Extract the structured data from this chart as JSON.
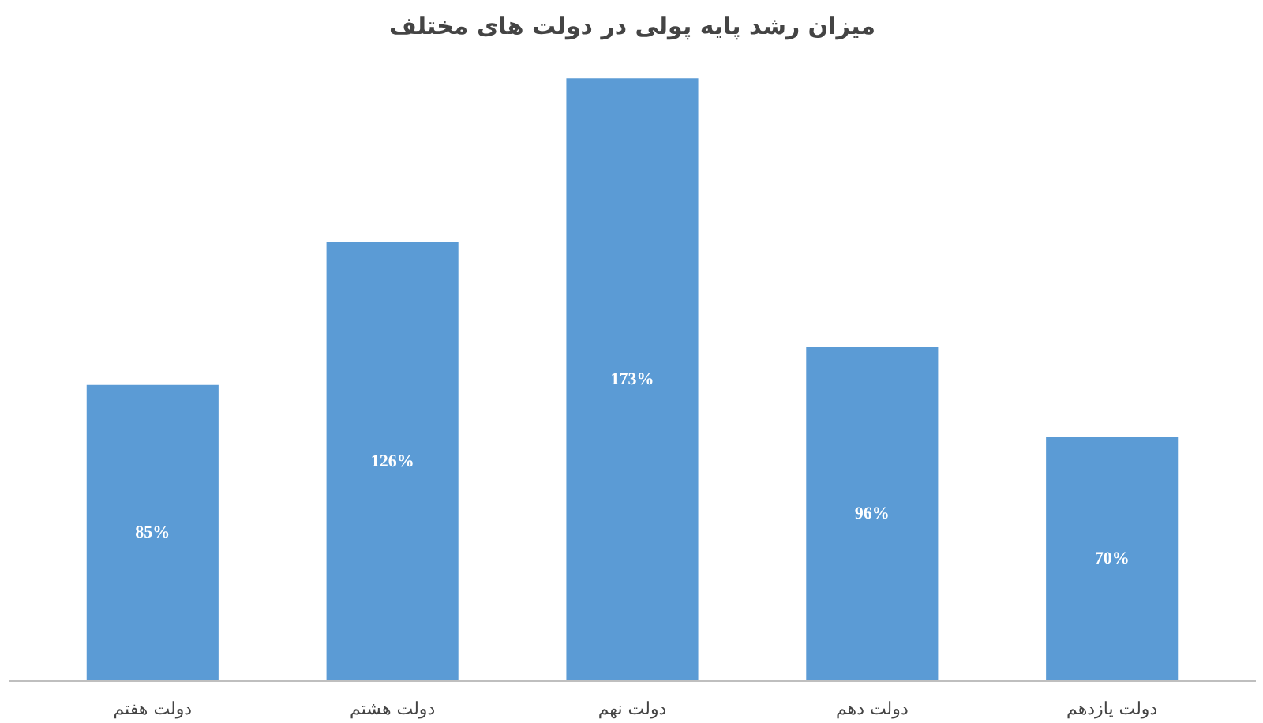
{
  "chart_data": {
    "type": "bar",
    "title": "میزان رشد پایه پولی در دولت های مختلف",
    "categories": [
      "دولت هفتم",
      "دولت هشتم",
      "دولت نهم",
      "دولت دهم",
      "دولت یازدهم"
    ],
    "values": [
      85,
      126,
      173,
      96,
      70
    ],
    "value_labels": [
      "85%",
      "126%",
      "173%",
      "96%",
      "70%"
    ],
    "color": "#5b9bd5",
    "tick_labels": "x",
    "grid": false
  }
}
